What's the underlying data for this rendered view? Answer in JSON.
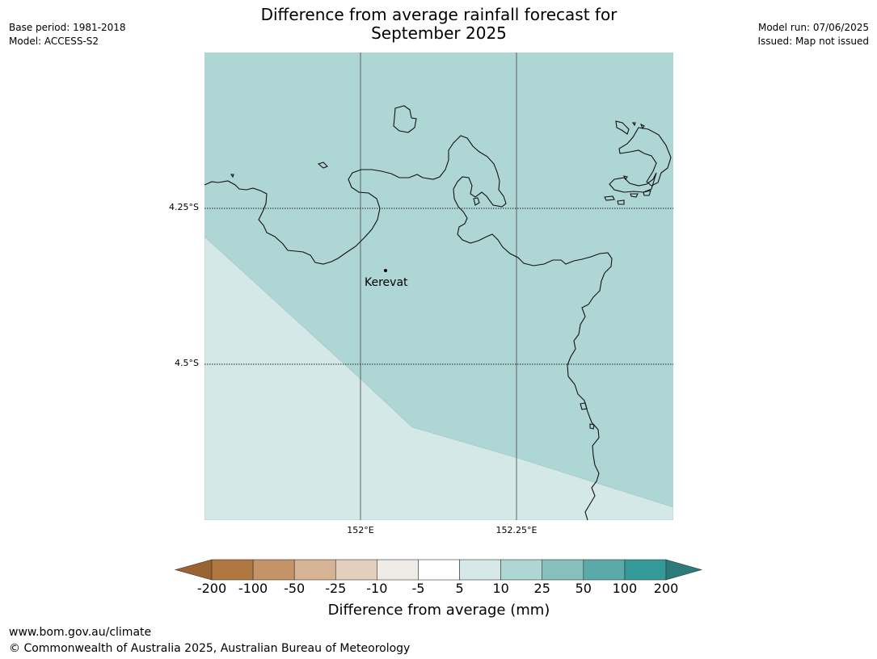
{
  "title_line1": "Difference from average rainfall forecast for",
  "title_line2": "September 2025",
  "meta_left": {
    "base_period": "Base period: 1981-2018",
    "model": "Model: ACCESS-S2"
  },
  "meta_right": {
    "model_run": "Model run: 07/06/2025",
    "issued": "Issued: Map not issued"
  },
  "map": {
    "lat_labels": [
      "4.25°S",
      "4.5°S"
    ],
    "lon_labels": [
      "152°E",
      "152.25°E"
    ],
    "place": "Kerevat",
    "colors": {
      "zone_5_10": "#d4e8e7",
      "zone_10_25": "#aed6d5",
      "coast": "#111111",
      "grid": "#333333"
    }
  },
  "colorbar": {
    "labels": [
      "-200",
      "-100",
      "-50",
      "-25",
      "-10",
      "-5",
      "5",
      "10",
      "25",
      "50",
      "100",
      "200"
    ],
    "colors": [
      "#9c6332",
      "#b07840",
      "#c49368",
      "#d5b394",
      "#e3cfbc",
      "#efebe6",
      "#ffffff",
      "#d6e9e8",
      "#aed6d5",
      "#86c1be",
      "#5aaaa9",
      "#34999a",
      "#2c7b7a"
    ],
    "title": "Difference from average (mm)"
  },
  "footer": {
    "url": "www.bom.gov.au/climate",
    "copyright": "© Commonwealth of Australia 2025, Australian Bureau of Meteorology"
  }
}
